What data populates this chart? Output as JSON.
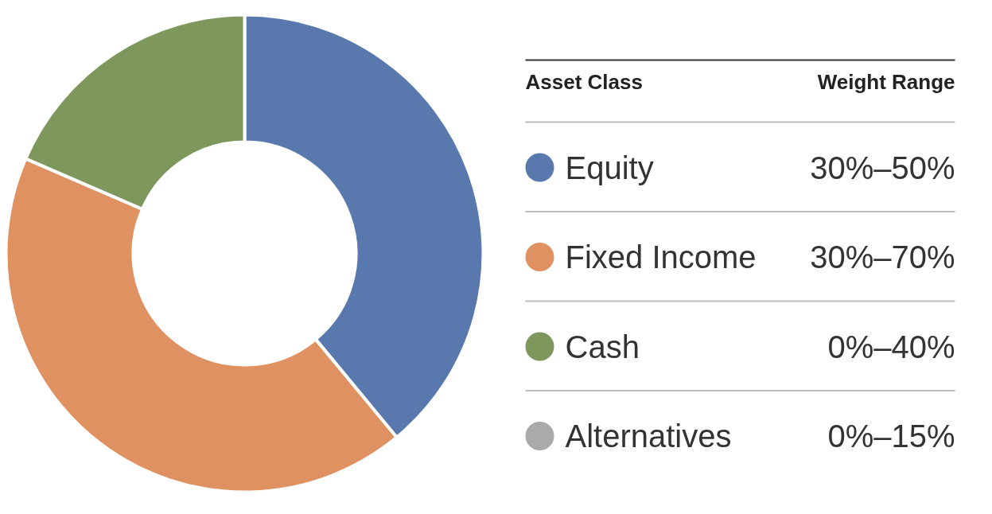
{
  "chart_data": {
    "type": "donut",
    "legend_title": "Asset Class",
    "legend": "right",
    "categories": [
      "Equity",
      "Fixed Income",
      "Cash",
      "Alternatives"
    ],
    "values": [
      39,
      42.5,
      18.5,
      0
    ],
    "colors": [
      "#5878ae",
      "#e09162",
      "#7d975c",
      "#aaaaaa"
    ],
    "annotations": [
      "Weight Range",
      "30%–50%",
      "30%–70%",
      "0%–40%",
      "0%–15%"
    ]
  }
}
